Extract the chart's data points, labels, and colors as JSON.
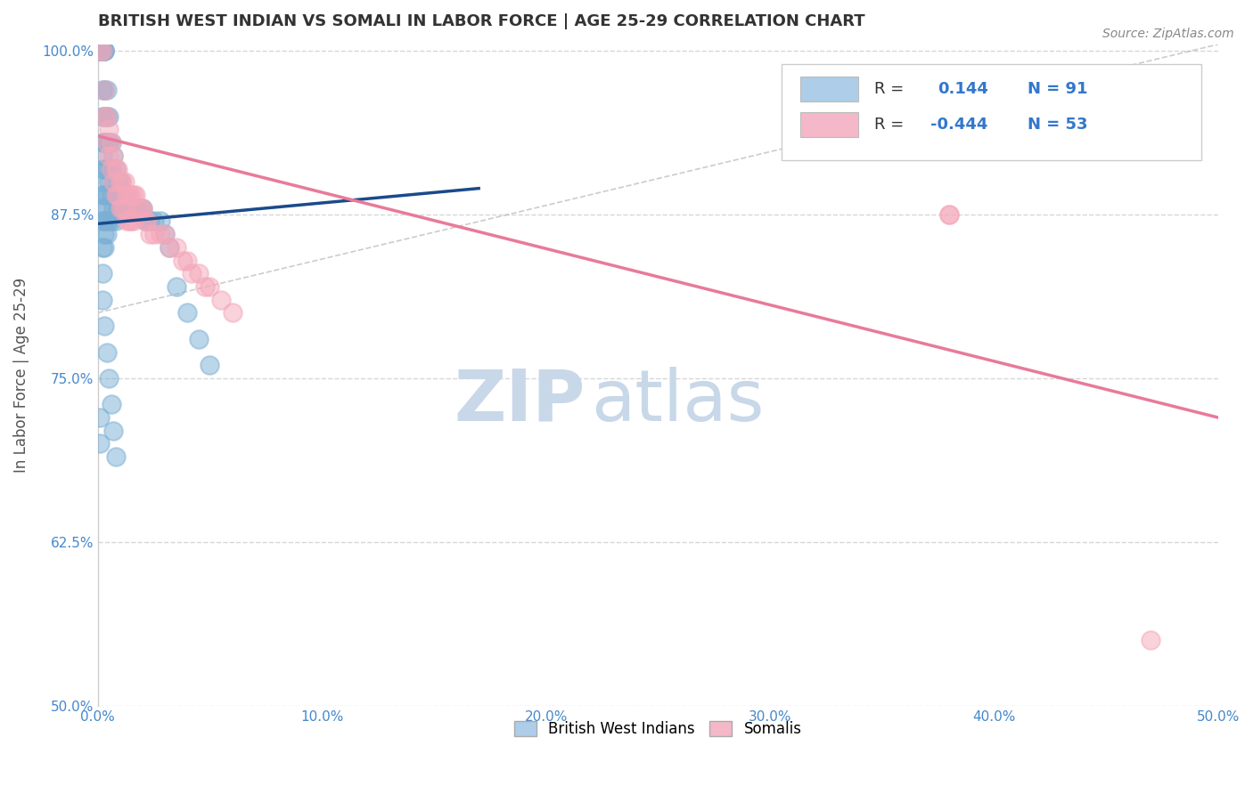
{
  "title": "BRITISH WEST INDIAN VS SOMALI IN LABOR FORCE | AGE 25-29 CORRELATION CHART",
  "source_text": "Source: ZipAtlas.com",
  "ylabel": "In Labor Force | Age 25-29",
  "xlim": [
    0.0,
    0.5
  ],
  "ylim": [
    0.5,
    1.005
  ],
  "xticks": [
    0.0,
    0.1,
    0.2,
    0.3,
    0.4,
    0.5
  ],
  "xticklabels": [
    "0.0%",
    "10.0%",
    "20.0%",
    "30.0%",
    "40.0%",
    "50.0%"
  ],
  "yticks": [
    0.5,
    0.625,
    0.75,
    0.875,
    1.0
  ],
  "yticklabels": [
    "50.0%",
    "62.5%",
    "75.0%",
    "87.5%",
    "100.0%"
  ],
  "blue_color": "#7bafd4",
  "pink_color": "#f4a7b9",
  "blue_line_color": "#1a4a8a",
  "pink_line_color": "#e87a9a",
  "legend_blue_color": "#aecde8",
  "legend_pink_color": "#f4b8c8",
  "R_blue": 0.144,
  "N_blue": 91,
  "R_pink": -0.444,
  "N_pink": 53,
  "watermark_zip": "ZIP",
  "watermark_atlas": "atlas",
  "watermark_color": "#c8d8e8",
  "background_color": "#ffffff",
  "grid_color": "#cccccc",
  "title_color": "#333333",
  "axis_label_color": "#555555",
  "tick_color": "#4488cc",
  "blue_scatter_x": [
    0.001,
    0.001,
    0.001,
    0.001,
    0.001,
    0.002,
    0.002,
    0.002,
    0.002,
    0.002,
    0.002,
    0.002,
    0.002,
    0.002,
    0.002,
    0.002,
    0.002,
    0.002,
    0.002,
    0.003,
    0.003,
    0.003,
    0.003,
    0.003,
    0.003,
    0.003,
    0.003,
    0.003,
    0.003,
    0.003,
    0.003,
    0.004,
    0.004,
    0.004,
    0.004,
    0.004,
    0.004,
    0.004,
    0.005,
    0.005,
    0.005,
    0.005,
    0.006,
    0.006,
    0.006,
    0.006,
    0.007,
    0.007,
    0.007,
    0.008,
    0.008,
    0.008,
    0.009,
    0.009,
    0.01,
    0.01,
    0.01,
    0.011,
    0.011,
    0.012,
    0.012,
    0.013,
    0.014,
    0.015,
    0.016,
    0.017,
    0.018,
    0.019,
    0.02,
    0.021,
    0.022,
    0.023,
    0.025,
    0.028,
    0.03,
    0.032,
    0.035,
    0.04,
    0.045,
    0.05,
    0.001,
    0.001,
    0.002,
    0.002,
    0.002,
    0.003,
    0.004,
    0.005,
    0.006,
    0.007,
    0.008
  ],
  "blue_scatter_y": [
    1.0,
    1.0,
    1.0,
    1.0,
    1.0,
    1.0,
    1.0,
    1.0,
    1.0,
    1.0,
    0.97,
    0.95,
    0.93,
    0.92,
    0.91,
    0.9,
    0.89,
    0.88,
    0.87,
    1.0,
    1.0,
    1.0,
    0.97,
    0.95,
    0.93,
    0.91,
    0.89,
    0.88,
    0.87,
    0.86,
    0.85,
    0.97,
    0.95,
    0.93,
    0.91,
    0.89,
    0.87,
    0.86,
    0.95,
    0.93,
    0.9,
    0.87,
    0.93,
    0.91,
    0.89,
    0.87,
    0.92,
    0.9,
    0.88,
    0.91,
    0.89,
    0.87,
    0.9,
    0.88,
    0.9,
    0.89,
    0.88,
    0.89,
    0.88,
    0.89,
    0.88,
    0.88,
    0.88,
    0.88,
    0.88,
    0.88,
    0.88,
    0.88,
    0.88,
    0.87,
    0.87,
    0.87,
    0.87,
    0.87,
    0.86,
    0.85,
    0.82,
    0.8,
    0.78,
    0.76,
    0.72,
    0.7,
    0.85,
    0.83,
    0.81,
    0.79,
    0.77,
    0.75,
    0.73,
    0.71,
    0.69
  ],
  "pink_scatter_x": [
    0.001,
    0.002,
    0.003,
    0.003,
    0.004,
    0.004,
    0.005,
    0.005,
    0.006,
    0.006,
    0.007,
    0.007,
    0.008,
    0.008,
    0.009,
    0.009,
    0.01,
    0.01,
    0.011,
    0.011,
    0.012,
    0.012,
    0.013,
    0.013,
    0.014,
    0.014,
    0.015,
    0.015,
    0.016,
    0.016,
    0.017,
    0.018,
    0.019,
    0.02,
    0.021,
    0.022,
    0.023,
    0.025,
    0.028,
    0.03,
    0.032,
    0.035,
    0.038,
    0.04,
    0.042,
    0.045,
    0.048,
    0.05,
    0.055,
    0.06,
    0.38,
    0.38,
    0.47
  ],
  "pink_scatter_y": [
    1.0,
    1.0,
    0.97,
    0.95,
    0.95,
    0.93,
    0.94,
    0.92,
    0.93,
    0.91,
    0.92,
    0.9,
    0.91,
    0.89,
    0.91,
    0.89,
    0.9,
    0.88,
    0.9,
    0.88,
    0.9,
    0.88,
    0.89,
    0.87,
    0.89,
    0.87,
    0.89,
    0.87,
    0.89,
    0.87,
    0.89,
    0.88,
    0.88,
    0.88,
    0.87,
    0.87,
    0.86,
    0.86,
    0.86,
    0.86,
    0.85,
    0.85,
    0.84,
    0.84,
    0.83,
    0.83,
    0.82,
    0.82,
    0.81,
    0.8,
    0.875,
    0.875,
    0.55
  ],
  "blue_trendline_x": [
    0.0,
    0.17
  ],
  "blue_trendline_y": [
    0.868,
    0.895
  ],
  "pink_trendline_x": [
    0.0,
    0.5
  ],
  "pink_trendline_y": [
    0.935,
    0.72
  ],
  "diag_line_x": [
    0.0,
    0.5
  ],
  "diag_line_y": [
    0.8,
    1.005
  ]
}
